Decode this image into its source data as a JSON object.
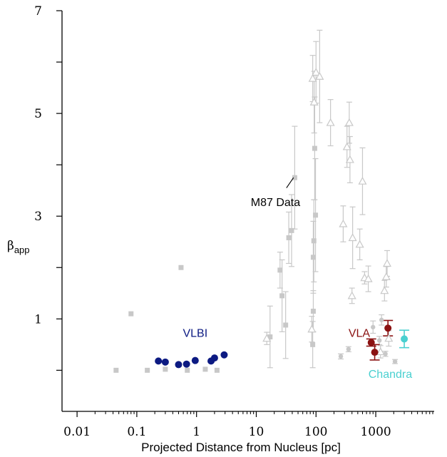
{
  "chart_data": {
    "type": "scatter",
    "xscale": "log",
    "xlim": [
      0.0056,
      9500
    ],
    "ylim": [
      -0.8,
      7
    ],
    "xlabel": "Projected Distance from Nucleus [pc]",
    "ylabel": "β",
    "ylabel_sub": "app",
    "xticks": [
      {
        "value": 0.01,
        "label": "0.01"
      },
      {
        "value": 0.1,
        "label": "0.1"
      },
      {
        "value": 1,
        "label": "1"
      },
      {
        "value": 10,
        "label": "10"
      },
      {
        "value": 100,
        "label": "100"
      },
      {
        "value": 1000,
        "label": "1000"
      }
    ],
    "yticks_major": [
      {
        "value": 1,
        "label": "1"
      },
      {
        "value": 3,
        "label": "3"
      },
      {
        "value": 5,
        "label": "5"
      },
      {
        "value": 7,
        "label": "7"
      }
    ],
    "yticks_minor": [
      0,
      2,
      4,
      6
    ],
    "grid": false,
    "colors": {
      "gray": "#c8c8c8",
      "vlbi": "#0c1a82",
      "vla": "#8b1212",
      "chandra": "#4ad0d0",
      "axis": "#000000"
    },
    "annotations": [
      {
        "text": "M87 Data",
        "x": 21,
        "y": 3.2,
        "color": "#000000",
        "pointer": {
          "x1": 32,
          "y1": 3.55,
          "x2": 42,
          "y2": 3.75
        }
      },
      {
        "text": "VLBI",
        "x": 0.95,
        "y": 0.65,
        "color": "#0c1a82"
      },
      {
        "text": "VLA",
        "x": 530,
        "y": 0.65,
        "color": "#8b1212"
      },
      {
        "text": "Chandra",
        "x": 1750,
        "y": -0.15,
        "color": "#4ad0d0"
      }
    ],
    "series": [
      {
        "name": "VLBI",
        "marker": "circle",
        "color": "#0c1a82",
        "points": [
          {
            "x": 0.23,
            "y": 0.18
          },
          {
            "x": 0.3,
            "y": 0.16
          },
          {
            "x": 0.5,
            "y": 0.11
          },
          {
            "x": 0.68,
            "y": 0.12
          },
          {
            "x": 0.95,
            "y": 0.19
          },
          {
            "x": 1.75,
            "y": 0.18
          },
          {
            "x": 2.0,
            "y": 0.24
          },
          {
            "x": 2.9,
            "y": 0.3
          }
        ]
      },
      {
        "name": "VLA",
        "marker": "circle",
        "color": "#8b1212",
        "points": [
          {
            "x": 840,
            "y": 0.54,
            "yerr": 0.07
          },
          {
            "x": 960,
            "y": 0.35,
            "yerr": 0.15
          },
          {
            "x": 1600,
            "y": 0.82,
            "yerr": 0.15
          }
        ]
      },
      {
        "name": "Chandra",
        "marker": "circle",
        "color": "#4ad0d0",
        "points": [
          {
            "x": 3000,
            "y": 0.61,
            "yerr": 0.17
          }
        ]
      },
      {
        "name": "gray-squares",
        "marker": "square",
        "color": "#c8c8c8",
        "points": [
          {
            "x": 0.045,
            "y": 0.0
          },
          {
            "x": 0.08,
            "y": 1.1
          },
          {
            "x": 0.15,
            "y": 0.0
          },
          {
            "x": 0.3,
            "y": 0.02
          },
          {
            "x": 0.55,
            "y": 2.0
          },
          {
            "x": 0.7,
            "y": 0.0
          },
          {
            "x": 1.4,
            "y": 0.02
          },
          {
            "x": 2.2,
            "y": 0.0
          },
          {
            "x": 17,
            "y": 0.65,
            "yerr": 0.6
          },
          {
            "x": 25,
            "y": 1.95,
            "yerr": 0.35
          },
          {
            "x": 27,
            "y": 1.45,
            "yerr": 0.7
          },
          {
            "x": 31,
            "y": 0.88,
            "yerr": 0.65
          },
          {
            "x": 35,
            "y": 2.58,
            "yerr": 0.5
          },
          {
            "x": 39,
            "y": 2.72,
            "yerr": 0.7
          },
          {
            "x": 44,
            "y": 3.75,
            "yerr": 1.0
          },
          {
            "x": 88,
            "y": 0.5,
            "yerr": 0.45
          },
          {
            "x": 90,
            "y": 1.15,
            "yerr": 0.4
          },
          {
            "x": 90,
            "y": 2.2,
            "yerr": 0.7
          },
          {
            "x": 92,
            "y": 2.52,
            "yerr": 0.8
          },
          {
            "x": 95,
            "y": 4.32,
            "yerr": 1.0
          },
          {
            "x": 98,
            "y": 3.02,
            "yerr": 1.1
          }
        ]
      },
      {
        "name": "gray-triangles",
        "marker": "triangle",
        "color": "#c8c8c8",
        "points": [
          {
            "x": 15,
            "y": 0.62,
            "yerr": 0.12
          },
          {
            "x": 85,
            "y": 0.8,
            "yerr": 0.25
          },
          {
            "x": 88,
            "y": 5.68,
            "yerr": 0.45
          },
          {
            "x": 93,
            "y": 5.22,
            "yerr": 0.6
          },
          {
            "x": 100,
            "y": 5.8,
            "yerr": 0.6
          },
          {
            "x": 115,
            "y": 5.72,
            "yerr": 0.9
          },
          {
            "x": 175,
            "y": 4.82,
            "yerr": 0.45
          },
          {
            "x": 285,
            "y": 2.85,
            "yerr": 0.35
          },
          {
            "x": 330,
            "y": 4.35,
            "yerr": 0.4
          },
          {
            "x": 360,
            "y": 4.82,
            "yerr": 0.4
          },
          {
            "x": 370,
            "y": 4.1,
            "yerr": 0.45
          },
          {
            "x": 400,
            "y": 1.45,
            "yerr": 0.15
          },
          {
            "x": 410,
            "y": 2.58,
            "yerr": 0.6
          },
          {
            "x": 540,
            "y": 2.45,
            "yerr": 0.3
          },
          {
            "x": 600,
            "y": 3.68,
            "yerr": 0.65
          },
          {
            "x": 650,
            "y": 1.8,
            "yerr": 0.12
          },
          {
            "x": 750,
            "y": 1.78,
            "yerr": 0.25
          },
          {
            "x": 1200,
            "y": 0.36,
            "yerr": 0.12
          },
          {
            "x": 1400,
            "y": 1.55,
            "yerr": 0.2
          },
          {
            "x": 1500,
            "y": 1.82,
            "yerr": 0.2
          },
          {
            "x": 1550,
            "y": 2.08,
            "yerr": 0.25
          },
          {
            "x": 1650,
            "y": 0.62,
            "yerr": 0.15
          }
        ]
      },
      {
        "name": "gray-circles",
        "marker": "circle",
        "color": "#c8c8c8",
        "points": [
          {
            "x": 260,
            "y": 0.27,
            "yerr": 0.05
          },
          {
            "x": 350,
            "y": 0.41,
            "yerr": 0.05
          },
          {
            "x": 900,
            "y": 0.84,
            "yerr": 0.12
          },
          {
            "x": 1150,
            "y": 0.58,
            "yerr": 0.08
          },
          {
            "x": 1250,
            "y": 0.98,
            "yerr": 0.1
          },
          {
            "x": 1450,
            "y": 0.32,
            "yerr": 0.05
          },
          {
            "x": 2100,
            "y": 0.17,
            "yerr": 0.04
          }
        ]
      }
    ]
  }
}
